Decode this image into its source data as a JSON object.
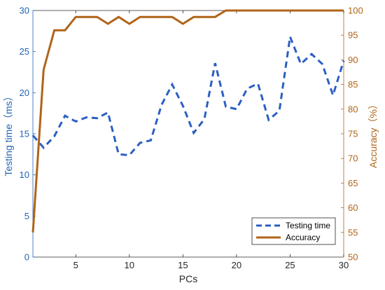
{
  "chart_data": {
    "type": "line",
    "xlabel": "PCs",
    "ylabel_left": "Testing time（ms）",
    "ylabel_right": "Accuracy（%）",
    "xlim": [
      1,
      30
    ],
    "ylim_left": [
      0,
      30
    ],
    "ylim_right": [
      50,
      100
    ],
    "x_ticks": [
      5,
      10,
      15,
      20,
      25,
      30
    ],
    "y_left_ticks": [
      0,
      5,
      10,
      15,
      20,
      25,
      30
    ],
    "y_right_ticks": [
      50,
      55,
      60,
      65,
      70,
      75,
      80,
      85,
      90,
      95,
      100
    ],
    "grid": false,
    "legend_position": "bottom-right",
    "colors": {
      "left_axis": "#1f63b4",
      "right_axis": "#b06418",
      "testing_time": "#2b5fc2",
      "accuracy": "#b06418"
    },
    "x": [
      1,
      2,
      3,
      4,
      5,
      6,
      7,
      8,
      9,
      10,
      11,
      12,
      13,
      14,
      15,
      16,
      17,
      18,
      19,
      20,
      21,
      22,
      23,
      24,
      25,
      26,
      27,
      28,
      29,
      30
    ],
    "series": [
      {
        "name": "Testing time",
        "axis": "left",
        "style": "dashed",
        "values": [
          14.8,
          13.3,
          14.7,
          17.2,
          16.5,
          17.0,
          16.9,
          17.6,
          12.5,
          12.4,
          13.9,
          14.2,
          18.5,
          21.0,
          18.4,
          15.1,
          16.8,
          23.6,
          18.3,
          18.0,
          20.5,
          21.1,
          16.7,
          17.8,
          26.8,
          23.5,
          24.7,
          23.5,
          19.7,
          23.9
        ]
      },
      {
        "name": "Accuracy",
        "axis": "right",
        "style": "solid",
        "values": [
          55.0,
          88.0,
          96.0,
          96.0,
          98.7,
          98.7,
          98.7,
          97.3,
          98.7,
          97.3,
          98.7,
          98.7,
          98.7,
          98.7,
          97.3,
          98.7,
          98.7,
          98.7,
          100.0,
          100.0,
          100.0,
          100.0,
          100.0,
          100.0,
          100.0,
          100.0,
          100.0,
          100.0,
          100.0,
          100.0
        ]
      }
    ]
  }
}
